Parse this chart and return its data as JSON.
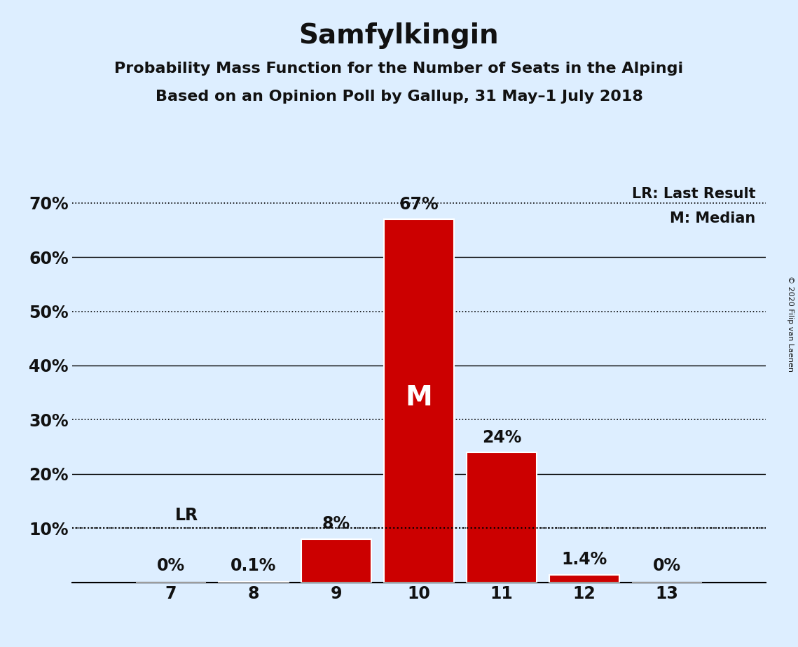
{
  "title": "Samfylkingin",
  "subtitle1": "Probability Mass Function for the Number of Seats in the Alpingi",
  "subtitle2": "Based on an Opinion Poll by Gallup, 31 May–1 July 2018",
  "copyright": "© 2020 Filip van Laenen",
  "categories": [
    7,
    8,
    9,
    10,
    11,
    12,
    13
  ],
  "values": [
    0.0,
    0.1,
    8.0,
    67.0,
    24.0,
    1.4,
    0.0
  ],
  "bar_color": "#cc0000",
  "background_color": "#ddeeff",
  "text_color": "#111111",
  "ylim": [
    0,
    74
  ],
  "xlim_left": 5.8,
  "xlim_right": 14.2,
  "dotted_lines": [
    10,
    30,
    50,
    70
  ],
  "solid_lines": [
    20,
    40,
    60
  ],
  "lr_value": 10.0,
  "median_seat": 10,
  "legend_lr": "LR: Last Result",
  "legend_m": "M: Median",
  "bar_labels": [
    "0%",
    "0.1%",
    "8%",
    "67%",
    "24%",
    "1.4%",
    "0%"
  ],
  "median_label": "M",
  "title_fontsize": 28,
  "subtitle_fontsize": 16,
  "tick_fontsize": 17,
  "label_fontsize": 17,
  "legend_fontsize": 15
}
